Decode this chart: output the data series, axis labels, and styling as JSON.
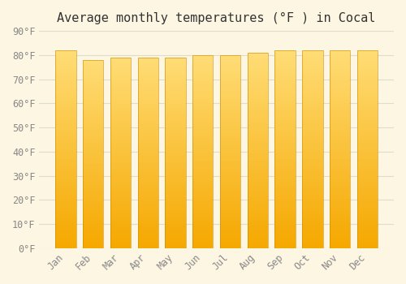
{
  "title": "Average monthly temperatures (°F ) in Cocal",
  "months": [
    "Jan",
    "Feb",
    "Mar",
    "Apr",
    "May",
    "Jun",
    "Jul",
    "Aug",
    "Sep",
    "Oct",
    "Nov",
    "Dec"
  ],
  "values": [
    82,
    78,
    79,
    79,
    79,
    80,
    80,
    81,
    82,
    82,
    82,
    82
  ],
  "ylim": [
    0,
    90
  ],
  "yticks": [
    0,
    10,
    20,
    30,
    40,
    50,
    60,
    70,
    80,
    90
  ],
  "ytick_labels": [
    "0°F",
    "10°F",
    "20°F",
    "30°F",
    "40°F",
    "50°F",
    "60°F",
    "70°F",
    "80°F",
    "90°F"
  ],
  "bar_color_bottom": "#f5a800",
  "bar_color_top": "#ffdd77",
  "background_color": "#fdf6e3",
  "grid_color": "#ddddcc",
  "title_fontsize": 11,
  "tick_fontsize": 8.5,
  "font_family": "monospace"
}
